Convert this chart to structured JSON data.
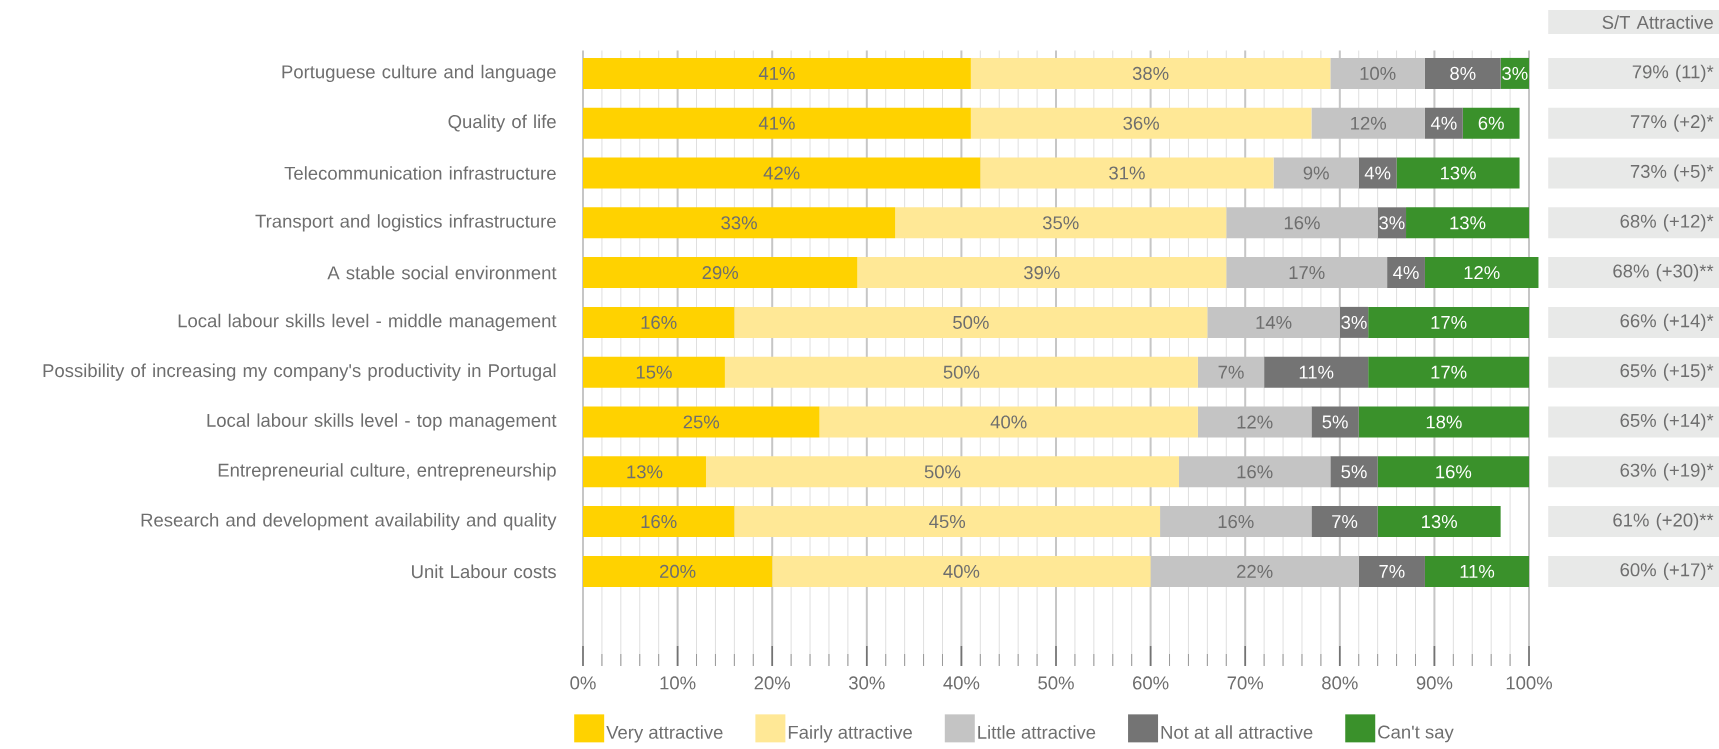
{
  "chart_data": {
    "type": "bar",
    "orientation": "horizontal",
    "stacked": true,
    "categories": [
      "Portuguese culture and language",
      "Quality of life",
      "Telecommunication infrastructure",
      "Transport and logistics infrastructure",
      "A stable social environment",
      "Local labour skills level - middle management",
      "Possibility of increasing my company's productivity in Portugal",
      "Local labour skills level - top management",
      "Entrepreneurial culture, entrepreneurship",
      "Research and development availability and quality",
      "Unit Labour costs"
    ],
    "series": [
      {
        "name": "Very attractive",
        "color": "#ffd200",
        "values": [
          41,
          41,
          42,
          33,
          29,
          16,
          15,
          25,
          13,
          16,
          20
        ],
        "value_labels": [
          "41%",
          "41%",
          "42%",
          "33%",
          "29%",
          "16%",
          "15%",
          "25%",
          "13%",
          "16%",
          "20%"
        ]
      },
      {
        "name": "Fairly attractive",
        "color": "#ffe896",
        "values": [
          38,
          36,
          31,
          35,
          39,
          50,
          50,
          40,
          50,
          45,
          40
        ],
        "value_labels": [
          "38%",
          "36%",
          "31%",
          "35%",
          "39%",
          "50%",
          "50%",
          "40%",
          "50%",
          "45%",
          "40%"
        ]
      },
      {
        "name": "Little attractive",
        "color": "#c4c4c4",
        "values": [
          10,
          12,
          9,
          16,
          17,
          14,
          7,
          12,
          16,
          16,
          22
        ],
        "value_labels": [
          "10%",
          "12%",
          "9%",
          "16%",
          "17%",
          "14%",
          "7%",
          "12%",
          "16%",
          "16%",
          "22%"
        ]
      },
      {
        "name": "Not at all attractive",
        "color": "#747474",
        "values": [
          8,
          4,
          4,
          3,
          4,
          3,
          11,
          5,
          5,
          7,
          7
        ],
        "value_labels": [
          "8%",
          "4%",
          "4%",
          "3%",
          "4%",
          "3%",
          "11%",
          "5%",
          "5%",
          "7%",
          "7%"
        ]
      },
      {
        "name": "Can't say",
        "color": "#3a912b",
        "values": [
          3,
          6,
          13,
          13,
          12,
          17,
          17,
          18,
          16,
          13,
          11
        ],
        "value_labels": [
          "3%",
          "6%",
          "13%",
          "13%",
          "12%",
          "17%",
          "17%",
          "18%",
          "16%",
          "13%",
          "11%"
        ]
      }
    ],
    "xlim": [
      0,
      101.5
    ],
    "xticks": [
      {
        "value": 0,
        "label": "0%"
      },
      {
        "value": 10,
        "label": "10%"
      },
      {
        "value": 20,
        "label": "20%"
      },
      {
        "value": 30,
        "label": "30%"
      },
      {
        "value": 40,
        "label": "40%"
      },
      {
        "value": 50,
        "label": "50%"
      },
      {
        "value": 60,
        "label": "60%"
      },
      {
        "value": 70,
        "label": "70%"
      },
      {
        "value": 80,
        "label": "80%"
      },
      {
        "value": 90,
        "label": "90%"
      },
      {
        "value": 100,
        "label": "100%"
      }
    ],
    "grid": "x",
    "legend": "bottom",
    "annotations": [
      "S/T Attractive",
      "79% (11)*",
      "77% (+2)*",
      "73% (+5)*",
      "68% (+12)*",
      "68% (+30)**",
      "66% (+14)*",
      "65% (+15)*",
      "65% (+14)*",
      "63% (+19)*",
      "61% (+20)**",
      "60% (+17)*"
    ]
  }
}
